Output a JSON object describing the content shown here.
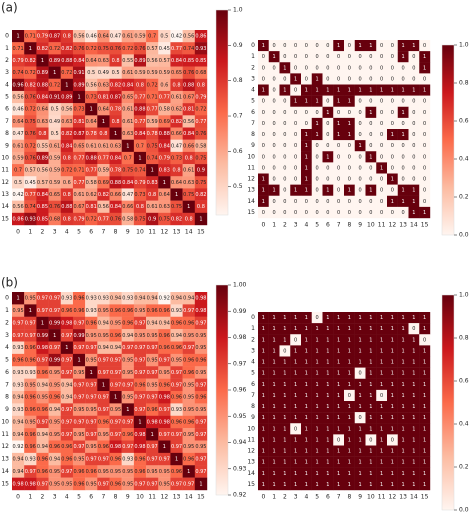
{
  "panel_labels": [
    "(a)",
    "(b)"
  ],
  "chart_data": [
    {
      "type": "heatmap",
      "x_categories": [
        "0",
        "1",
        "2",
        "3",
        "4",
        "5",
        "6",
        "7",
        "8",
        "9",
        "10",
        "11",
        "12",
        "13",
        "14",
        "15"
      ],
      "y_categories": [
        "0",
        "1",
        "2",
        "3",
        "4",
        "5",
        "6",
        "7",
        "8",
        "9",
        "10",
        "11",
        "12",
        "13",
        "14",
        "15"
      ],
      "zlim": [
        0.42,
        1
      ],
      "zticks": [
        0.5,
        0.6,
        0.7,
        0.8,
        0.9,
        {
          "value": 1,
          "label": "1.0"
        }
      ],
      "colormap": [
        "#fff5f0",
        "#fcbba1",
        "#fb6a4a",
        "#cb181d",
        "#67000d"
      ],
      "values": [
        [
          1,
          0.71,
          0.79,
          0.87,
          0.8,
          0.56,
          0.46,
          0.64,
          0.47,
          0.61,
          0.59,
          0.7,
          0.5,
          0.42,
          0.56,
          0.86
        ],
        [
          0.71,
          1,
          0.82,
          0.72,
          0.82,
          0.76,
          0.72,
          0.75,
          0.76,
          0.72,
          0.76,
          0.57,
          0.45,
          0.77,
          0.74,
          0.93
        ],
        [
          0.79,
          0.82,
          1,
          0.89,
          0.88,
          0.84,
          0.64,
          0.63,
          0.8,
          0.55,
          0.89,
          0.56,
          0.57,
          0.84,
          0.85,
          0.85
        ],
        [
          0.74,
          0.72,
          0.89,
          1,
          0.72,
          0.91,
          0.5,
          0.49,
          0.5,
          0.61,
          0.59,
          0.59,
          0.59,
          0.65,
          0.76,
          0.68
        ],
        [
          0.96,
          0.82,
          0.88,
          0.72,
          1,
          0.89,
          0.56,
          0.63,
          0.82,
          0.84,
          0.8,
          0.72,
          0.6,
          0.8,
          0.88,
          0.8
        ],
        [
          0.56,
          0.76,
          0.84,
          0.91,
          0.89,
          1,
          0.73,
          0.81,
          0.87,
          0.65,
          0.77,
          0.71,
          0.77,
          0.61,
          0.67,
          0.79
        ],
        [
          0.46,
          0.72,
          0.64,
          0.5,
          0.56,
          0.73,
          1,
          0.64,
          0.78,
          0.61,
          0.88,
          0.77,
          0.58,
          0.62,
          0.81,
          0.72
        ],
        [
          0.64,
          0.75,
          0.63,
          0.49,
          0.63,
          0.81,
          0.64,
          1,
          0.8,
          0.61,
          0.77,
          0.59,
          0.69,
          0.82,
          0.56,
          0.77
        ],
        [
          0.47,
          0.76,
          0.8,
          0.5,
          0.82,
          0.87,
          0.78,
          0.8,
          1,
          0.63,
          0.84,
          0.78,
          0.88,
          0.66,
          0.84,
          0.76
        ],
        [
          0.61,
          0.72,
          0.55,
          0.61,
          0.84,
          0.65,
          0.61,
          0.61,
          0.63,
          1,
          0.7,
          0.75,
          0.84,
          0.47,
          0.66,
          0.58
        ],
        [
          0.59,
          0.76,
          0.89,
          0.59,
          0.8,
          0.77,
          0.88,
          0.77,
          0.84,
          0.7,
          1,
          0.74,
          0.79,
          0.73,
          0.8,
          0.75
        ],
        [
          0.7,
          0.57,
          0.56,
          0.59,
          0.72,
          0.71,
          0.77,
          0.59,
          0.78,
          0.75,
          0.74,
          1,
          0.83,
          0.8,
          0.61,
          0.9
        ],
        [
          0.5,
          0.45,
          0.57,
          0.59,
          0.6,
          0.77,
          0.58,
          0.69,
          0.88,
          0.84,
          0.79,
          0.83,
          1,
          0.64,
          0.63,
          0.75
        ],
        [
          0.42,
          0.77,
          0.84,
          0.65,
          0.8,
          0.61,
          0.62,
          0.82,
          0.66,
          0.47,
          0.73,
          0.8,
          0.64,
          1,
          0.75,
          0.82
        ],
        [
          0.56,
          0.74,
          0.85,
          0.76,
          0.88,
          0.67,
          0.81,
          0.56,
          0.84,
          0.66,
          0.8,
          0.61,
          0.63,
          0.75,
          1,
          0.8
        ],
        [
          0.86,
          0.93,
          0.85,
          0.68,
          0.8,
          0.79,
          0.72,
          0.77,
          0.76,
          0.58,
          0.75,
          0.9,
          0.75,
          0.82,
          0.8,
          1
        ]
      ]
    },
    {
      "type": "heatmap",
      "x_categories": [
        "0",
        "1",
        "2",
        "3",
        "4",
        "5",
        "6",
        "7",
        "8",
        "9",
        "10",
        "11",
        "12",
        "13",
        "14",
        "15"
      ],
      "y_categories": [
        "0",
        "1",
        "2",
        "3",
        "4",
        "5",
        "6",
        "7",
        "8",
        "9",
        "10",
        "11",
        "12",
        "13",
        "14",
        "15"
      ],
      "zlim": [
        0,
        1
      ],
      "zticks": [
        {
          "value": 0,
          "label": "0.0"
        },
        0.2,
        0.4,
        0.6,
        0.8,
        {
          "value": 1,
          "label": "1.0"
        }
      ],
      "colormap": [
        "#fff5f0",
        "#fcbba1",
        "#fb6a4a",
        "#cb181d",
        "#67000d"
      ],
      "values": [
        [
          1,
          0,
          0,
          0,
          0,
          0,
          0,
          1,
          0,
          1,
          1,
          0,
          0,
          1,
          1,
          0
        ],
        [
          0,
          1,
          0,
          0,
          0,
          0,
          0,
          0,
          0,
          0,
          0,
          0,
          0,
          1,
          0,
          1
        ],
        [
          0,
          0,
          1,
          0,
          0,
          0,
          0,
          0,
          0,
          0,
          0,
          0,
          0,
          0,
          0,
          1
        ],
        [
          0,
          0,
          0,
          1,
          0,
          1,
          0,
          0,
          0,
          0,
          0,
          0,
          0,
          0,
          0,
          0
        ],
        [
          1,
          0,
          1,
          0,
          1,
          1,
          1,
          1,
          1,
          1,
          1,
          1,
          1,
          1,
          1,
          1
        ],
        [
          0,
          0,
          0,
          1,
          1,
          1,
          0,
          1,
          1,
          0,
          0,
          0,
          0,
          0,
          0,
          0
        ],
        [
          0,
          0,
          0,
          0,
          0,
          0,
          1,
          0,
          0,
          0,
          1,
          0,
          0,
          1,
          0,
          0
        ],
        [
          0,
          0,
          0,
          0,
          0,
          1,
          0,
          1,
          1,
          0,
          0,
          0,
          0,
          0,
          0,
          0
        ],
        [
          0,
          0,
          0,
          0,
          1,
          1,
          0,
          1,
          1,
          0,
          0,
          0,
          1,
          1,
          0,
          0
        ],
        [
          0,
          0,
          0,
          0,
          1,
          0,
          0,
          0,
          0,
          1,
          0,
          0,
          0,
          0,
          0,
          0
        ],
        [
          0,
          0,
          0,
          0,
          1,
          0,
          1,
          0,
          0,
          0,
          1,
          0,
          0,
          0,
          0,
          0
        ],
        [
          0,
          0,
          0,
          0,
          1,
          0,
          0,
          0,
          0,
          0,
          0,
          1,
          0,
          0,
          0,
          0
        ],
        [
          1,
          0,
          0,
          0,
          1,
          0,
          0,
          0,
          0,
          0,
          0,
          0,
          1,
          0,
          0,
          0
        ],
        [
          1,
          1,
          0,
          1,
          1,
          0,
          1,
          0,
          1,
          0,
          1,
          0,
          0,
          1,
          1,
          0
        ],
        [
          1,
          0,
          0,
          0,
          0,
          0,
          0,
          0,
          0,
          0,
          0,
          0,
          1,
          1,
          1,
          0
        ],
        [
          0,
          0,
          0,
          0,
          0,
          0,
          0,
          0,
          0,
          0,
          0,
          0,
          0,
          0,
          1,
          1
        ]
      ]
    },
    {
      "type": "heatmap",
      "x_categories": [
        "0",
        "1",
        "2",
        "3",
        "4",
        "5",
        "6",
        "7",
        "8",
        "9",
        "10",
        "11",
        "12",
        "13",
        "14",
        "15"
      ],
      "y_categories": [
        "0",
        "1",
        "2",
        "3",
        "4",
        "5",
        "6",
        "7",
        "8",
        "9",
        "10",
        "11",
        "12",
        "13",
        "14",
        "15"
      ],
      "zlim": [
        0.92,
        1
      ],
      "zticks": [
        0.92,
        0.93,
        0.94,
        0.95,
        0.96,
        0.97,
        0.98,
        0.99,
        {
          "value": 1,
          "label": "1.00"
        }
      ],
      "colormap": [
        "#fff5f0",
        "#fcbba1",
        "#fb6a4a",
        "#cb181d",
        "#67000d"
      ],
      "values": [
        [
          1,
          0.95,
          0.97,
          0.97,
          0.93,
          0.96,
          0.93,
          0.93,
          0.94,
          0.93,
          0.94,
          0.94,
          0.92,
          0.94,
          0.94,
          0.98
        ],
        [
          0.95,
          1,
          0.97,
          0.97,
          0.96,
          0.96,
          0.93,
          0.95,
          0.96,
          0.96,
          0.95,
          0.96,
          0.96,
          0.93,
          0.97,
          0.98
        ],
        [
          0.97,
          0.97,
          1,
          0.99,
          0.98,
          0.97,
          0.96,
          0.94,
          0.95,
          0.96,
          0.97,
          0.94,
          0.94,
          0.96,
          0.96,
          0.97
        ],
        [
          0.97,
          0.97,
          0.99,
          1,
          0.97,
          0.99,
          0.95,
          0.95,
          0.96,
          0.94,
          0.95,
          0.95,
          0.96,
          0.94,
          0.95,
          0.95
        ],
        [
          0.93,
          0.96,
          0.98,
          0.97,
          1,
          0.97,
          0.97,
          0.94,
          0.94,
          0.97,
          0.97,
          0.97,
          0.96,
          0.96,
          0.97,
          0.95
        ],
        [
          0.96,
          0.96,
          0.97,
          0.99,
          0.97,
          1,
          0.95,
          0.97,
          0.97,
          0.95,
          0.97,
          0.95,
          0.97,
          0.95,
          0.96,
          0.96
        ],
        [
          0.93,
          0.93,
          0.96,
          0.95,
          0.97,
          0.95,
          1,
          0.97,
          0.97,
          0.95,
          0.97,
          0.97,
          0.95,
          0.97,
          0.96,
          0.95
        ],
        [
          0.93,
          0.95,
          0.94,
          0.95,
          0.94,
          0.97,
          0.97,
          1,
          0.97,
          0.97,
          0.96,
          0.95,
          0.96,
          0.97,
          0.95,
          0.97
        ],
        [
          0.94,
          0.96,
          0.95,
          0.96,
          0.94,
          0.97,
          0.97,
          0.97,
          1,
          0.95,
          0.97,
          0.97,
          0.98,
          0.96,
          0.95,
          0.96
        ],
        [
          0.93,
          0.96,
          0.96,
          0.94,
          0.97,
          0.95,
          0.95,
          0.97,
          0.95,
          1,
          0.97,
          0.96,
          0.97,
          0.93,
          0.95,
          0.95
        ],
        [
          0.94,
          0.95,
          0.97,
          0.95,
          0.97,
          0.97,
          0.97,
          0.96,
          0.97,
          0.97,
          1,
          0.98,
          0.98,
          0.96,
          0.96,
          0.97
        ],
        [
          0.94,
          0.96,
          0.94,
          0.95,
          0.97,
          0.95,
          0.97,
          0.95,
          0.97,
          0.96,
          0.98,
          1,
          0.97,
          0.97,
          0.95,
          0.97
        ],
        [
          0.92,
          0.96,
          0.94,
          0.96,
          0.96,
          0.97,
          0.95,
          0.96,
          0.98,
          0.97,
          0.98,
          0.97,
          1,
          0.97,
          0.95,
          0.95
        ],
        [
          0.94,
          0.93,
          0.96,
          0.94,
          0.96,
          0.95,
          0.97,
          0.97,
          0.96,
          0.93,
          0.96,
          0.97,
          0.97,
          1,
          0.96,
          0.97
        ],
        [
          0.94,
          0.97,
          0.96,
          0.95,
          0.97,
          0.96,
          0.96,
          0.95,
          0.95,
          0.95,
          0.96,
          0.95,
          0.95,
          0.96,
          1,
          0.97
        ],
        [
          0.98,
          0.98,
          0.97,
          0.95,
          0.95,
          0.96,
          0.95,
          0.97,
          0.96,
          0.95,
          0.97,
          0.97,
          0.95,
          0.97,
          0.97,
          1
        ]
      ]
    },
    {
      "type": "heatmap",
      "x_categories": [
        "0",
        "1",
        "2",
        "3",
        "4",
        "5",
        "6",
        "7",
        "8",
        "9",
        "10",
        "11",
        "12",
        "13",
        "14",
        "15"
      ],
      "y_categories": [
        "0",
        "1",
        "2",
        "3",
        "4",
        "5",
        "6",
        "7",
        "8",
        "9",
        "10",
        "11",
        "12",
        "13",
        "14",
        "15"
      ],
      "zlim": [
        0,
        1
      ],
      "zticks": [
        {
          "value": 0,
          "label": "0.0"
        },
        0.2,
        0.4,
        0.6,
        0.8,
        {
          "value": 1,
          "label": "1.0"
        }
      ],
      "colormap": [
        "#fff5f0",
        "#fcbba1",
        "#fb6a4a",
        "#cb181d",
        "#67000d"
      ],
      "values": [
        [
          1,
          1,
          1,
          1,
          1,
          0,
          1,
          1,
          1,
          1,
          1,
          1,
          1,
          1,
          1,
          1
        ],
        [
          1,
          1,
          1,
          1,
          1,
          1,
          1,
          1,
          1,
          1,
          1,
          1,
          1,
          1,
          0,
          1
        ],
        [
          1,
          1,
          1,
          0,
          1,
          1,
          1,
          1,
          1,
          1,
          1,
          1,
          1,
          1,
          1,
          0
        ],
        [
          1,
          1,
          0,
          1,
          1,
          1,
          1,
          1,
          1,
          1,
          1,
          1,
          1,
          1,
          1,
          1
        ],
        [
          1,
          1,
          1,
          1,
          1,
          1,
          1,
          1,
          1,
          1,
          1,
          1,
          1,
          1,
          1,
          1
        ],
        [
          1,
          1,
          1,
          1,
          1,
          1,
          1,
          1,
          1,
          0,
          1,
          1,
          1,
          1,
          1,
          1
        ],
        [
          1,
          1,
          1,
          1,
          1,
          1,
          1,
          1,
          1,
          1,
          1,
          1,
          1,
          1,
          1,
          1
        ],
        [
          1,
          1,
          1,
          1,
          1,
          1,
          1,
          1,
          0,
          1,
          1,
          0,
          1,
          1,
          1,
          1
        ],
        [
          1,
          1,
          1,
          1,
          1,
          1,
          1,
          1,
          1,
          1,
          1,
          1,
          1,
          1,
          1,
          1
        ],
        [
          1,
          1,
          1,
          1,
          1,
          1,
          1,
          1,
          1,
          0,
          1,
          1,
          1,
          1,
          1,
          1
        ],
        [
          1,
          1,
          1,
          0,
          1,
          1,
          1,
          1,
          1,
          1,
          1,
          1,
          1,
          1,
          1,
          1
        ],
        [
          1,
          1,
          1,
          1,
          1,
          1,
          1,
          0,
          1,
          1,
          0,
          1,
          0,
          1,
          1,
          1
        ],
        [
          1,
          1,
          1,
          1,
          1,
          1,
          1,
          1,
          1,
          1,
          1,
          1,
          1,
          1,
          1,
          1
        ],
        [
          1,
          1,
          1,
          1,
          1,
          1,
          1,
          1,
          1,
          1,
          1,
          1,
          1,
          1,
          1,
          1
        ],
        [
          1,
          1,
          1,
          1,
          1,
          1,
          1,
          1,
          1,
          1,
          1,
          1,
          1,
          1,
          1,
          1
        ],
        [
          1,
          1,
          1,
          1,
          1,
          1,
          1,
          1,
          1,
          1,
          1,
          1,
          1,
          1,
          1,
          1
        ]
      ]
    }
  ]
}
